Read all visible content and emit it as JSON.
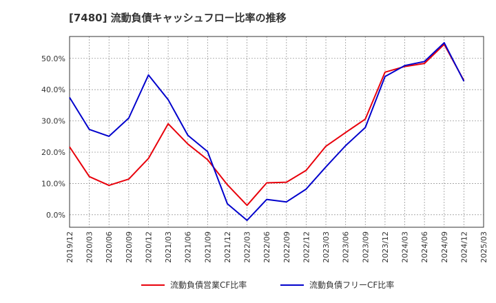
{
  "chart_data": {
    "type": "line",
    "title": "[7480]  流動負債キャッシュフロー比率の推移",
    "x": [
      "2019/12",
      "2020/03",
      "2020/06",
      "2020/09",
      "2020/12",
      "2021/03",
      "2021/06",
      "2021/09",
      "2021/12",
      "2022/03",
      "2022/06",
      "2022/09",
      "2022/12",
      "2023/03",
      "2023/06",
      "2023/09",
      "2023/12",
      "2024/03",
      "2024/06",
      "2024/09",
      "2024/12"
    ],
    "x_ticks": [
      "2019/12",
      "2020/03",
      "2020/06",
      "2020/09",
      "2020/12",
      "2021/03",
      "2021/06",
      "2021/09",
      "2021/12",
      "2022/03",
      "2022/06",
      "2022/09",
      "2022/12",
      "2023/03",
      "2023/06",
      "2023/09",
      "2023/12",
      "2024/03",
      "2024/06",
      "2024/09",
      "2024/12",
      "2025/03"
    ],
    "y_ticks": [
      "0.0%",
      "10.0%",
      "20.0%",
      "30.0%",
      "40.0%",
      "50.0%"
    ],
    "y_tick_values": [
      0,
      10,
      20,
      30,
      40,
      50
    ],
    "ylim": [
      -4,
      57
    ],
    "grid": true,
    "legend_position": "bottom",
    "series": [
      {
        "name": "流動負債営業CF比率",
        "color": "#e8000b",
        "values": [
          21.7,
          12.2,
          9.4,
          11.4,
          18.0,
          29.1,
          22.6,
          17.6,
          9.6,
          3.0,
          10.2,
          10.4,
          14.2,
          21.9,
          26.3,
          30.6,
          45.6,
          47.4,
          48.4,
          54.5,
          42.9
        ]
      },
      {
        "name": "流動負債フリーCF比率",
        "color": "#0000cc",
        "values": [
          37.5,
          27.3,
          25.1,
          30.9,
          44.7,
          36.8,
          25.4,
          20.2,
          3.5,
          -1.8,
          4.9,
          4.1,
          8.2,
          15.3,
          22.1,
          27.9,
          44.2,
          47.7,
          49.0,
          55.0,
          42.7
        ]
      }
    ]
  }
}
